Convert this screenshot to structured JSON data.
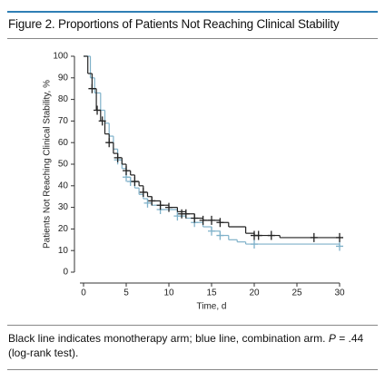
{
  "chart_data": {
    "type": "step",
    "title": "Figure 2. Proportions of Patients Not Reaching Clinical Stability",
    "x_label": "Time, d",
    "y_label": "Patients Not Reaching Clinical Stability, %",
    "caption": "Black line indicates monotherapy arm; blue line, combination arm. ",
    "caption_p": "P",
    "caption_rest": " = .44 (log-rank test).",
    "xlim": [
      0,
      30
    ],
    "ylim": [
      0,
      100
    ],
    "xticks": [
      0,
      5,
      10,
      15,
      20,
      25,
      30
    ],
    "yticks": [
      0,
      10,
      20,
      30,
      40,
      50,
      60,
      70,
      80,
      90,
      100
    ],
    "series": [
      {
        "color": "#222222",
        "x": [
          0,
          0.5,
          1,
          1.5,
          2,
          2.5,
          3,
          3.5,
          4,
          4.5,
          5,
          5.5,
          6,
          6.5,
          7,
          7.5,
          8,
          9,
          10,
          11,
          12,
          13,
          14,
          16,
          17,
          19,
          20,
          23,
          30
        ],
        "values": [
          100,
          92,
          85,
          75,
          70,
          64,
          60,
          55,
          53,
          50,
          47,
          45,
          42,
          40,
          37,
          35,
          33,
          31,
          30,
          28,
          27,
          25,
          24,
          23,
          21,
          18,
          17,
          16,
          16
        ],
        "censor_x": [
          1,
          1.6,
          2.2,
          3,
          4,
          5,
          6,
          7,
          8,
          9,
          10,
          11.5,
          12,
          13,
          14,
          15,
          16,
          20,
          20.5,
          22,
          27,
          30
        ],
        "censor_values": [
          85,
          75,
          70,
          60,
          53,
          47,
          42,
          37,
          33,
          31,
          30,
          27,
          27,
          25,
          24,
          24,
          23,
          17,
          17,
          17,
          16,
          16
        ]
      },
      {
        "color": "#7fb1c9",
        "x": [
          0,
          0.8,
          1.3,
          2,
          2.5,
          3,
          3.5,
          4,
          4.5,
          5,
          5.5,
          6,
          6.5,
          7,
          7.5,
          8,
          9,
          11,
          12,
          13,
          14,
          15,
          16,
          17,
          18,
          19,
          30
        ],
        "values": [
          100,
          90,
          83,
          75,
          69,
          63,
          57,
          52,
          48,
          44,
          42,
          39,
          36,
          34,
          32,
          31,
          29,
          26,
          25,
          23,
          21,
          19,
          17,
          15,
          14,
          13,
          12
        ],
        "censor_x": [
          4,
          5,
          5.5,
          7.5,
          9,
          11,
          13,
          15,
          16,
          20,
          30
        ],
        "censor_values": [
          52,
          44,
          42,
          32,
          29,
          26,
          23,
          19,
          17,
          13,
          12
        ]
      }
    ]
  }
}
